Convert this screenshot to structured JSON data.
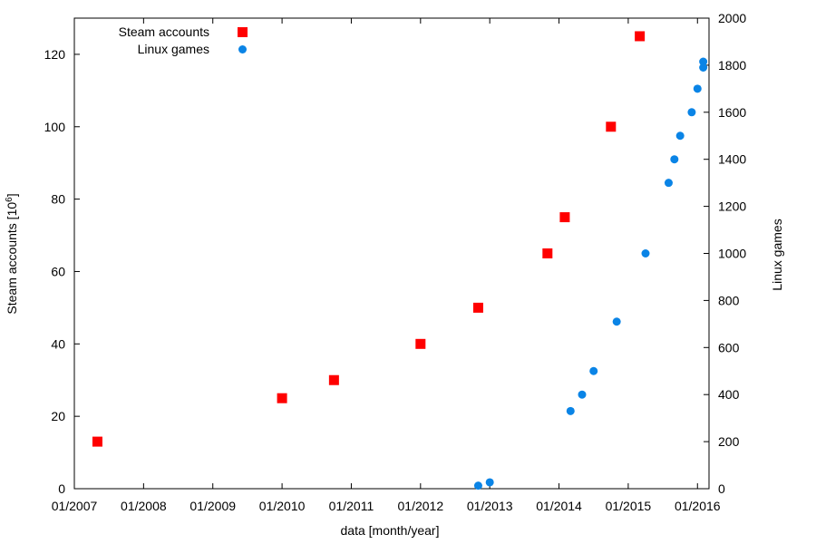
{
  "chart_data": {
    "type": "scatter",
    "xlabel": "data [month/year]",
    "ylabel_left_prefix": "Steam accounts [10",
    "ylabel_left_exp": "6",
    "ylabel_left_suffix": "]",
    "ylabel_right": "Linux games",
    "x_ticks": [
      "01/2007",
      "01/2008",
      "01/2009",
      "01/2010",
      "01/2011",
      "01/2012",
      "01/2013",
      "01/2014",
      "01/2015",
      "01/2016"
    ],
    "xlim": [
      "2007-01",
      "2016-03"
    ],
    "ylim_left": [
      0,
      130
    ],
    "yticks_left": [
      0,
      20,
      40,
      60,
      80,
      100,
      120
    ],
    "ylim_right": [
      0,
      2000
    ],
    "yticks_right": [
      0,
      200,
      400,
      600,
      800,
      1000,
      1200,
      1400,
      1600,
      1800,
      2000
    ],
    "grid": false,
    "legend": "top-left",
    "series": [
      {
        "name": "Steam accounts",
        "axis": "left",
        "marker": "square",
        "color": "#ff0000",
        "points": [
          {
            "x": "2007-05",
            "y": 13
          },
          {
            "x": "2010-01",
            "y": 25
          },
          {
            "x": "2010-10",
            "y": 30
          },
          {
            "x": "2012-01",
            "y": 40
          },
          {
            "x": "2012-11",
            "y": 50
          },
          {
            "x": "2013-11",
            "y": 65
          },
          {
            "x": "2014-02",
            "y": 75
          },
          {
            "x": "2014-10",
            "y": 100
          },
          {
            "x": "2015-03",
            "y": 125
          }
        ]
      },
      {
        "name": "Linux games",
        "axis": "right",
        "marker": "circle",
        "color": "#0a84e6",
        "points": [
          {
            "x": "2012-11",
            "y": 13
          },
          {
            "x": "2013-01",
            "y": 27
          },
          {
            "x": "2014-03",
            "y": 330
          },
          {
            "x": "2014-05",
            "y": 400
          },
          {
            "x": "2014-07",
            "y": 500
          },
          {
            "x": "2014-11",
            "y": 710
          },
          {
            "x": "2015-04",
            "y": 1000
          },
          {
            "x": "2015-08",
            "y": 1300
          },
          {
            "x": "2015-09",
            "y": 1400
          },
          {
            "x": "2015-10",
            "y": 1500
          },
          {
            "x": "2015-12",
            "y": 1600
          },
          {
            "x": "2016-01",
            "y": 1700
          },
          {
            "x": "2016-02",
            "y": 1790
          },
          {
            "x": "2016-02",
            "y": 1815
          }
        ]
      }
    ]
  }
}
